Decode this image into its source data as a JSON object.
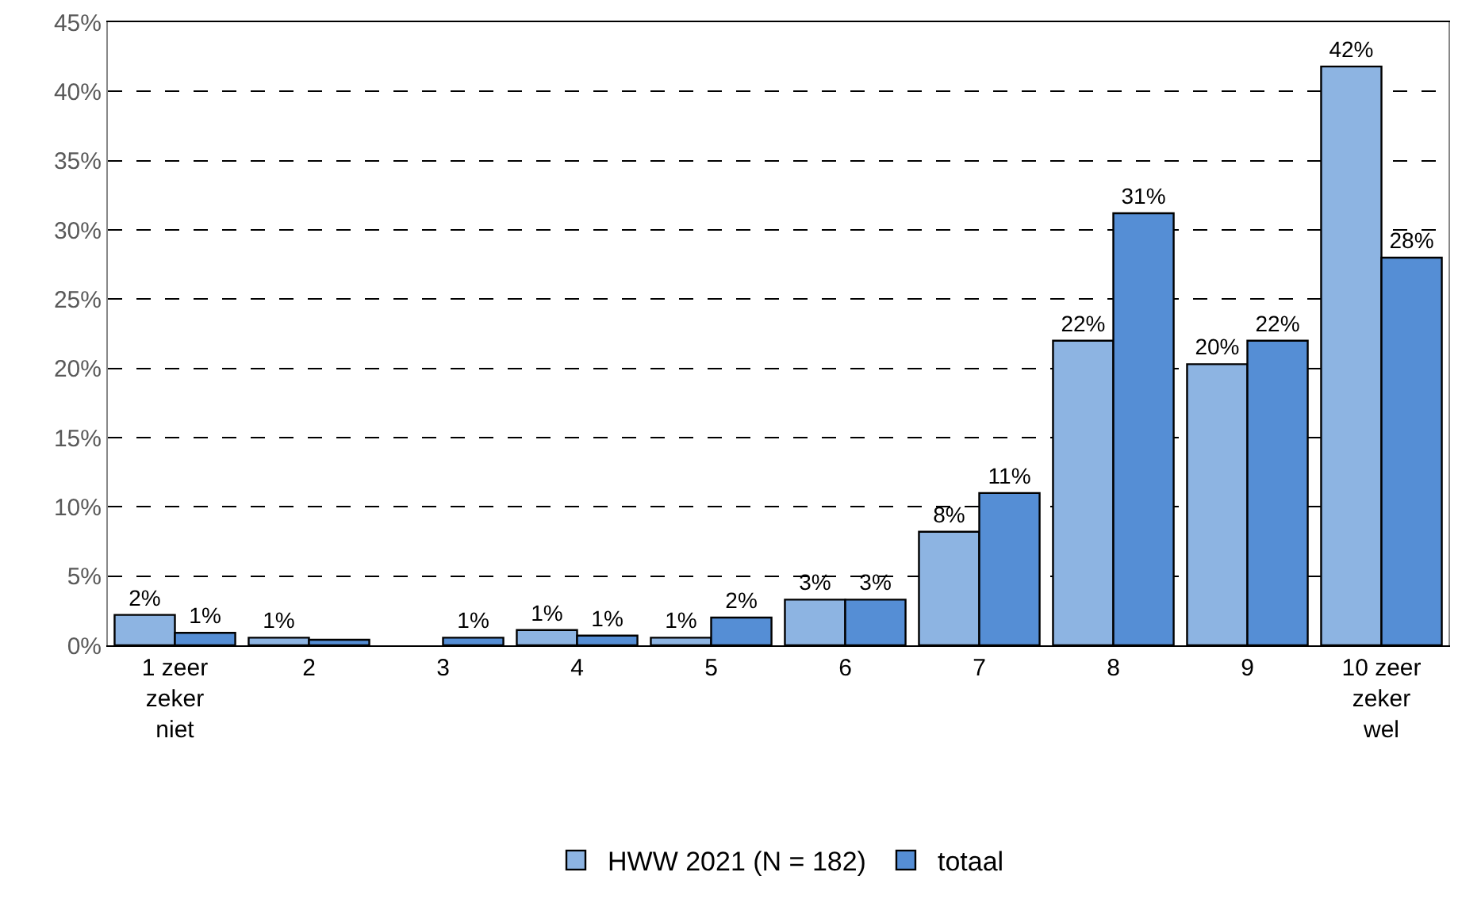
{
  "chart_data": {
    "type": "bar",
    "categories": [
      "1 zeer zeker niet",
      "2",
      "3",
      "4",
      "5",
      "6",
      "7",
      "8",
      "9",
      "10 zeer zeker wel"
    ],
    "series": [
      {
        "name": "HWW 2021 (N = 182)",
        "color": "#8db4e2",
        "values": [
          2.2,
          0.55,
          null,
          1.1,
          0.55,
          3.3,
          8.2,
          22,
          20.3,
          41.8
        ],
        "value_labels": [
          "2%",
          "1%",
          null,
          "1%",
          "1%",
          "3%",
          "8%",
          "22%",
          "20%",
          "42%"
        ]
      },
      {
        "name": "totaal",
        "color": "#558ed5",
        "values": [
          0.9,
          0.4,
          0.55,
          0.7,
          2,
          3.3,
          11,
          31.2,
          22,
          28
        ],
        "value_labels": [
          "1%",
          null,
          "1%",
          "1%",
          "2%",
          "3%",
          "11%",
          "31%",
          "22%",
          "28%"
        ]
      }
    ],
    "ylim": [
      0,
      45
    ],
    "yticks": [
      {
        "value": 0,
        "label": "0%"
      },
      {
        "value": 5,
        "label": "5%"
      },
      {
        "value": 10,
        "label": "10%"
      },
      {
        "value": 15,
        "label": "15%"
      },
      {
        "value": 20,
        "label": "20%"
      },
      {
        "value": 25,
        "label": "25%"
      },
      {
        "value": 30,
        "label": "30%"
      },
      {
        "value": 35,
        "label": "35%"
      },
      {
        "value": 40,
        "label": "40%"
      },
      {
        "value": 45,
        "label": "45%"
      }
    ],
    "grid": "y",
    "legend": "bottom"
  }
}
